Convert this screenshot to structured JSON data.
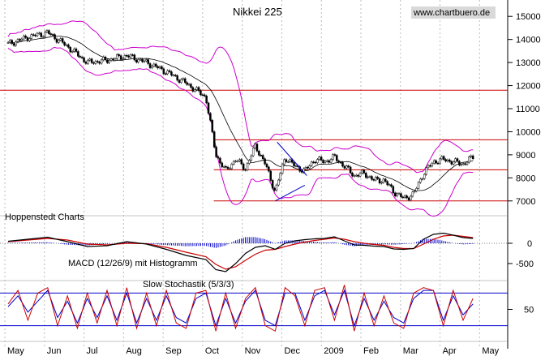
{
  "chart_data": [
    {
      "type": "candlestick",
      "title": "Nikkei 225",
      "watermark": "www.chartbuero.de",
      "overlays": [
        "Bollinger Bands"
      ],
      "y_ticks": [
        7000,
        8000,
        9000,
        10000,
        11000,
        12000,
        13000,
        14000,
        15000
      ],
      "ylim": [
        6500,
        15500
      ],
      "x_tick_labels": [
        "May",
        "Jun",
        "Jul",
        "Aug",
        "Sep",
        "Oct",
        "Nov",
        "Dec",
        "2009",
        "Feb",
        "Mar",
        "Apr",
        "May"
      ],
      "horizontal_lines": [
        11800,
        9650,
        8350,
        7000
      ],
      "trendline": {
        "from": {
          "x": 6.75,
          "y": 7000
        },
        "to": {
          "x": 7.5,
          "y": 7680
        }
      },
      "trendline2": {
        "from": {
          "x": 6.8,
          "y": 9550
        },
        "to": {
          "x": 7.55,
          "y": 8100
        }
      },
      "series": [
        {
          "name": "close",
          "x": [
            0,
            0.5,
            1,
            1.5,
            2,
            2.5,
            3,
            3.5,
            4,
            4.5,
            5,
            5.25,
            5.5,
            5.75,
            6,
            6.25,
            6.5,
            6.75,
            7,
            7.25,
            7.5,
            7.75,
            8,
            8.25,
            8.5,
            8.75,
            9,
            9.25,
            9.5,
            9.75,
            10,
            10.25,
            10.5,
            10.75,
            11,
            11.25,
            11.5,
            11.75
          ],
          "values": [
            13800,
            14100,
            14300,
            13700,
            13000,
            13100,
            13300,
            13000,
            12600,
            12100,
            11500,
            9000,
            8300,
            8800,
            8400,
            9400,
            8600,
            7400,
            8900,
            8500,
            8300,
            8800,
            8700,
            8900,
            8500,
            8100,
            8200,
            7900,
            7900,
            7400,
            7100,
            7300,
            8200,
            8700,
            8800,
            8700,
            8600,
            8900
          ]
        }
      ]
    },
    {
      "type": "line",
      "title": "MACD (12/26/9) mit Histogramm",
      "y_ticks": [
        0,
        -500
      ],
      "ylim": [
        -800,
        400
      ],
      "series": [
        {
          "name": "macd",
          "x": [
            0,
            0.5,
            1,
            1.5,
            2,
            2.5,
            3,
            3.5,
            4,
            4.5,
            5,
            5.25,
            5.5,
            5.75,
            6,
            6.25,
            6.5,
            6.75,
            7,
            7.25,
            7.5,
            7.75,
            8,
            8.25,
            8.5,
            8.75,
            9,
            9.25,
            9.5,
            9.75,
            10,
            10.25,
            10.5,
            10.75,
            11,
            11.25,
            11.5,
            11.75
          ],
          "values": [
            50,
            100,
            150,
            40,
            -80,
            -60,
            40,
            -20,
            -150,
            -300,
            -400,
            -650,
            -700,
            -500,
            -250,
            -100,
            -60,
            -150,
            0,
            60,
            90,
            110,
            120,
            160,
            60,
            -40,
            -50,
            -70,
            -80,
            -140,
            -150,
            -130,
            100,
            220,
            250,
            200,
            140,
            120
          ]
        },
        {
          "name": "signal",
          "x": [
            0,
            0.5,
            1,
            1.5,
            2,
            2.5,
            3,
            3.5,
            4,
            4.5,
            5,
            5.25,
            5.5,
            5.75,
            6,
            6.25,
            6.5,
            6.75,
            7,
            7.25,
            7.5,
            7.75,
            8,
            8.25,
            8.5,
            8.75,
            9,
            9.25,
            9.5,
            9.75,
            10,
            10.25,
            10.5,
            10.75,
            11,
            11.25,
            11.5,
            11.75
          ],
          "values": [
            40,
            80,
            120,
            80,
            -20,
            -40,
            0,
            -10,
            -100,
            -220,
            -330,
            -520,
            -640,
            -580,
            -420,
            -270,
            -170,
            -150,
            -80,
            -20,
            30,
            70,
            100,
            130,
            100,
            40,
            0,
            -30,
            -50,
            -100,
            -130,
            -130,
            -20,
            100,
            180,
            200,
            170,
            140
          ]
        }
      ]
    },
    {
      "type": "line",
      "title": "Slow Stochastik (5/3/3)",
      "y_ticks": [
        50
      ],
      "ylim": [
        0,
        100
      ],
      "horizontal_lines": [
        80,
        20
      ],
      "series": [
        {
          "name": "%K",
          "x": [
            0,
            0.25,
            0.5,
            0.75,
            1,
            1.25,
            1.5,
            1.75,
            2,
            2.25,
            2.5,
            2.75,
            3,
            3.25,
            3.5,
            3.75,
            4,
            4.25,
            4.5,
            4.75,
            5,
            5.25,
            5.5,
            5.75,
            6,
            6.25,
            6.5,
            6.75,
            7,
            7.25,
            7.5,
            7.75,
            8,
            8.25,
            8.5,
            8.75,
            9,
            9.25,
            9.5,
            9.75,
            10,
            10.25,
            10.5,
            10.75,
            11,
            11.25,
            11.5,
            11.75
          ],
          "values": [
            60,
            85,
            30,
            80,
            90,
            20,
            75,
            15,
            80,
            25,
            85,
            20,
            90,
            15,
            80,
            20,
            85,
            25,
            15,
            80,
            85,
            10,
            80,
            15,
            70,
            90,
            20,
            10,
            90,
            75,
            20,
            85,
            90,
            30,
            95,
            10,
            80,
            20,
            75,
            25,
            15,
            80,
            90,
            85,
            20,
            85,
            30,
            70
          ]
        },
        {
          "name": "%D",
          "x": [
            0,
            0.25,
            0.5,
            0.75,
            1,
            1.25,
            1.5,
            1.75,
            2,
            2.25,
            2.5,
            2.75,
            3,
            3.25,
            3.5,
            3.75,
            4,
            4.25,
            4.5,
            4.75,
            5,
            5.25,
            5.5,
            5.75,
            6,
            6.25,
            6.5,
            6.75,
            7,
            7.25,
            7.5,
            7.75,
            8,
            8.25,
            8.5,
            8.75,
            9,
            9.25,
            9.5,
            9.75,
            10,
            10.25,
            10.5,
            10.75,
            11,
            11.25,
            11.5,
            11.75
          ],
          "values": [
            55,
            75,
            45,
            65,
            85,
            35,
            65,
            25,
            70,
            35,
            75,
            30,
            80,
            25,
            70,
            30,
            75,
            35,
            25,
            70,
            80,
            20,
            70,
            25,
            65,
            85,
            30,
            20,
            80,
            80,
            30,
            75,
            85,
            40,
            85,
            20,
            70,
            30,
            65,
            35,
            25,
            70,
            85,
            85,
            30,
            75,
            40,
            60
          ]
        }
      ]
    }
  ],
  "panel_labels": {
    "source": "Hoppenstedt Charts"
  },
  "colors": {
    "bollinger": "#cc00cc",
    "hline": "#cc0000",
    "trend": "#0000cc",
    "macd": "#000000",
    "signal": "#cc0000",
    "histogram": "#0000cc",
    "stoch_k": "#cc0000",
    "stoch_d": "#0000cc",
    "grid": "#bbbbbb"
  }
}
